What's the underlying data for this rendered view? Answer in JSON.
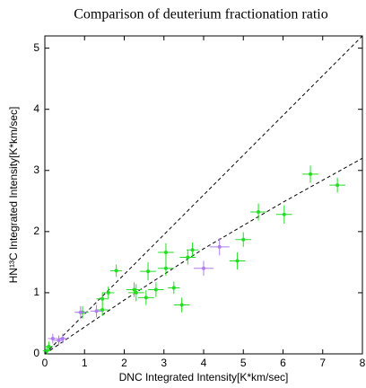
{
  "chart_data": {
    "type": "scatter",
    "title": "Comparison of deuterium fractionation ratio",
    "xlabel": "DNC Integrated Intensity[K*km/sec]",
    "ylabel": "HN¹³C Integrated Intensity[K*km/sec]",
    "xlim": [
      0,
      8
    ],
    "ylim": [
      0,
      5.2
    ],
    "xticks": [
      0,
      1,
      2,
      3,
      4,
      5,
      6,
      7,
      8
    ],
    "yticks": [
      0,
      1,
      2,
      3,
      4,
      5
    ],
    "series": [
      {
        "color": "#22dd22",
        "x": [
          7.37,
          6.69,
          6.03,
          5.38,
          5.0,
          4.85,
          3.72,
          3.6,
          3.05,
          3.05,
          3.25,
          3.45,
          2.8,
          2.6,
          2.55,
          2.3,
          2.25,
          1.8,
          1.6,
          1.45,
          1.45,
          0.95,
          0.1,
          0.05
        ],
        "values": [
          2.76,
          2.94,
          2.28,
          2.32,
          1.87,
          1.52,
          1.7,
          1.58,
          1.66,
          1.4,
          1.08,
          0.8,
          1.05,
          1.35,
          0.92,
          1.0,
          1.05,
          1.36,
          1.0,
          0.9,
          0.72,
          0.68,
          0.12,
          0.05
        ],
        "x_err": [
          0.2,
          0.2,
          0.2,
          0.2,
          0.2,
          0.2,
          0.15,
          0.2,
          0.2,
          0.2,
          0.15,
          0.2,
          0.2,
          0.2,
          0.2,
          0.2,
          0.2,
          0.15,
          0.15,
          0.15,
          0.15,
          0.15,
          0.1,
          0.1
        ],
        "y_err": [
          0.12,
          0.14,
          0.15,
          0.14,
          0.12,
          0.14,
          0.12,
          0.12,
          0.15,
          0.12,
          0.1,
          0.12,
          0.12,
          0.15,
          0.12,
          0.14,
          0.12,
          0.1,
          0.1,
          0.1,
          0.1,
          0.1,
          0.08,
          0.06
        ]
      },
      {
        "color": "#b07cf0",
        "x": [
          4.4,
          4.0,
          1.3,
          0.9,
          0.45,
          0.35,
          0.2
        ],
        "values": [
          1.75,
          1.4,
          0.7,
          0.68,
          0.25,
          0.22,
          0.25
        ],
        "x_err": [
          0.25,
          0.25,
          0.15,
          0.15,
          0.12,
          0.12,
          0.12
        ],
        "y_err": [
          0.14,
          0.12,
          0.1,
          0.1,
          0.08,
          0.08,
          0.08
        ]
      }
    ],
    "lines": [
      {
        "color": "#000000",
        "x": [
          0,
          8
        ],
        "values": [
          0,
          5.2
        ]
      },
      {
        "color": "#000000",
        "x": [
          0,
          2,
          4,
          6,
          8
        ],
        "values": [
          0,
          0.88,
          1.72,
          2.48,
          3.2
        ]
      }
    ]
  }
}
